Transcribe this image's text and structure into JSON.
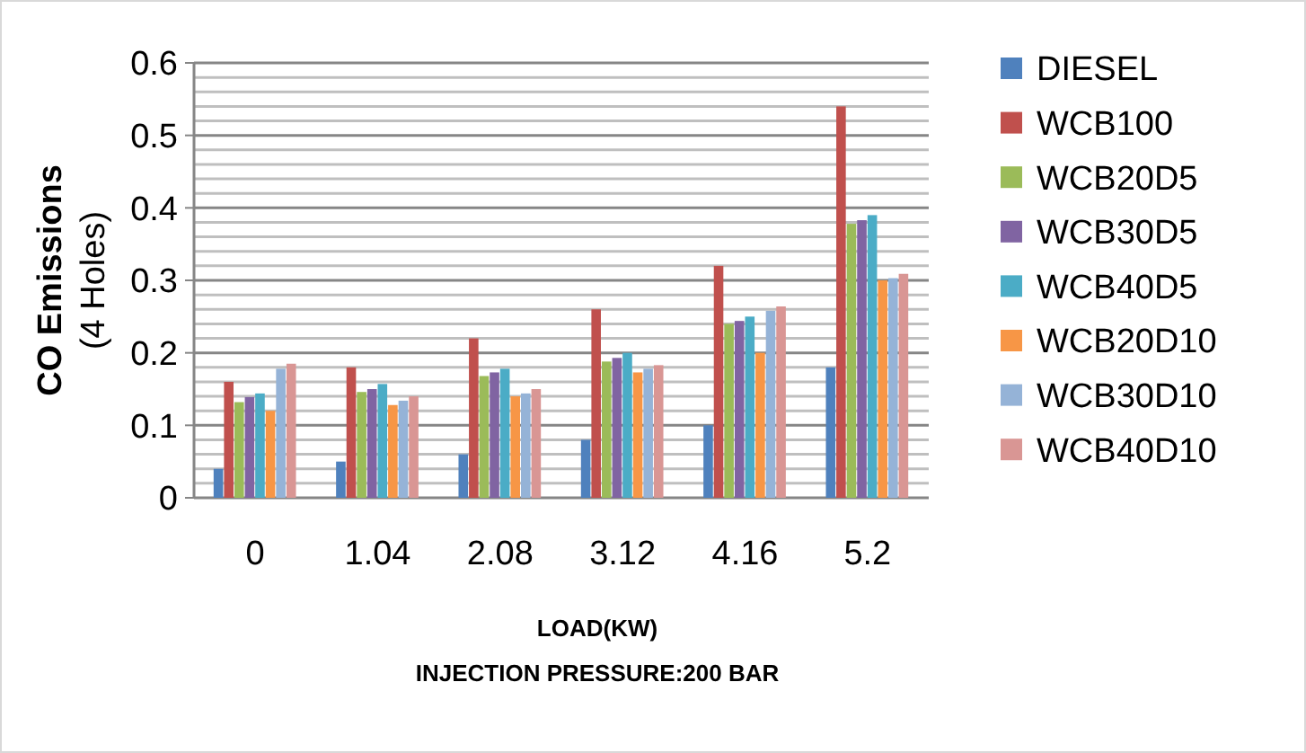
{
  "chart_data": {
    "type": "bar",
    "ylabel": "CO Emissions (4 Holes)",
    "xlabel": "LOAD(KW)",
    "subtitle": "INJECTION PRESSURE:200 BAR",
    "categories": [
      "0",
      "1.04",
      "2.08",
      "3.12",
      "4.16",
      "5.2"
    ],
    "series": [
      {
        "name": "DIESEL",
        "color": "#4f81bd",
        "values": [
          0.04,
          0.05,
          0.06,
          0.08,
          0.1,
          0.18
        ]
      },
      {
        "name": "WCB100",
        "color": "#c0504d",
        "values": [
          0.16,
          0.18,
          0.22,
          0.26,
          0.32,
          0.54
        ]
      },
      {
        "name": "WCB20D5",
        "color": "#9bbb59",
        "values": [
          0.132,
          0.146,
          0.168,
          0.188,
          0.24,
          0.378
        ]
      },
      {
        "name": "WCB30D5",
        "color": "#8064a2",
        "values": [
          0.139,
          0.15,
          0.173,
          0.193,
          0.244,
          0.383
        ]
      },
      {
        "name": "WCB40D5",
        "color": "#4bacc6",
        "values": [
          0.144,
          0.157,
          0.178,
          0.2,
          0.25,
          0.39
        ]
      },
      {
        "name": "WCB20D10",
        "color": "#f79646",
        "values": [
          0.12,
          0.128,
          0.14,
          0.173,
          0.2,
          0.3
        ]
      },
      {
        "name": "WCB30D10",
        "color": "#95b3d7",
        "values": [
          0.178,
          0.134,
          0.144,
          0.178,
          0.258,
          0.303
        ]
      },
      {
        "name": "WCB40D10",
        "color": "#d99694",
        "values": [
          0.185,
          0.14,
          0.15,
          0.183,
          0.264,
          0.309
        ]
      }
    ],
    "ylim": [
      0,
      0.6
    ],
    "yticks": [
      0,
      0.1,
      0.2,
      0.3,
      0.4,
      0.5,
      0.6
    ],
    "grid": "y",
    "legend": "right"
  }
}
